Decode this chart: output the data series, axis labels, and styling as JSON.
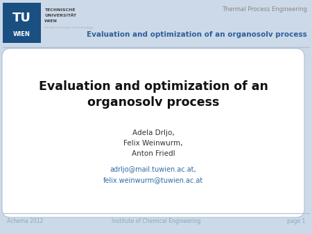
{
  "title_line1": "Evaluation and optimization of an",
  "title_line2": "organosolv process",
  "header_subtitle": "Evaluation and optimization of an organosolv process",
  "header_dept": "Thermal Process Engineering",
  "tu_line1": "TECHNISCHE",
  "tu_line2": "UNIVERSITÄT",
  "tu_line3": "WIEN",
  "tu_line4": "Vienna University of Technology",
  "tu_letters": "TU",
  "tu_wien": "WIEN",
  "authors_line1": "Adela Drljo,",
  "authors_line2": "Felix Weinwurm,",
  "authors_line3": "Anton Friedl",
  "email_line1": "adrljo@mail.tuwien.ac.at,",
  "email_line2": "felix.weinwurm@tuwien.ac.at",
  "footer_left": "Achema 2012",
  "footer_center": "Institute of Chemical Engineering",
  "footer_right": "page 1",
  "bg_color": "#ccd9e8",
  "white_box_bg": "#ffffff",
  "title_color": "#111111",
  "author_color": "#333333",
  "email_color": "#2e6da4",
  "footer_color": "#8aacbf",
  "header_title_color": "#2e5f9a",
  "header_dept_color": "#888888",
  "tu_box_color": "#1a4f82",
  "tu_text_color": "#ffffff",
  "uni_text_color": "#444444",
  "line_color": "#aec0cf",
  "content_border_color": "#b0c0d0"
}
